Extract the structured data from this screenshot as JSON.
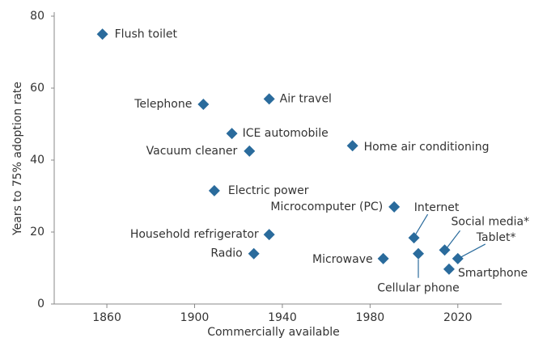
{
  "chart_data": {
    "type": "scatter",
    "x_label": "Commercially available",
    "y_label": "Years to 75% adoption rate",
    "xlim": [
      1836,
      2040
    ],
    "ylim": [
      0,
      80
    ],
    "xticks": [
      1860,
      1900,
      1940,
      1980,
      2020
    ],
    "yticks": [
      0,
      20,
      40,
      60,
      80
    ],
    "color": "#2a6b9c",
    "labels": [
      "Flush toilet",
      "Telephone",
      "Air travel",
      "ICE automobile",
      "Vacuum cleaner",
      "Electric power",
      "Home air conditioning",
      "Microcomputer (PC)",
      "Household refrigerator",
      "Radio",
      "Microwave",
      "Internet",
      "Cellular phone",
      "Social media*",
      "Tablet*",
      "Smartphone"
    ],
    "x": [
      1858,
      1904,
      1934,
      1917,
      1925,
      1909,
      1972,
      1991,
      1934,
      1927,
      1986,
      2000,
      2002,
      2014,
      2020,
      2016
    ],
    "y": [
      75,
      55.5,
      57,
      47.4,
      42.5,
      31.5,
      44,
      27,
      19.3,
      14,
      12.6,
      18.4,
      14,
      15,
      12.6,
      9.7
    ]
  }
}
